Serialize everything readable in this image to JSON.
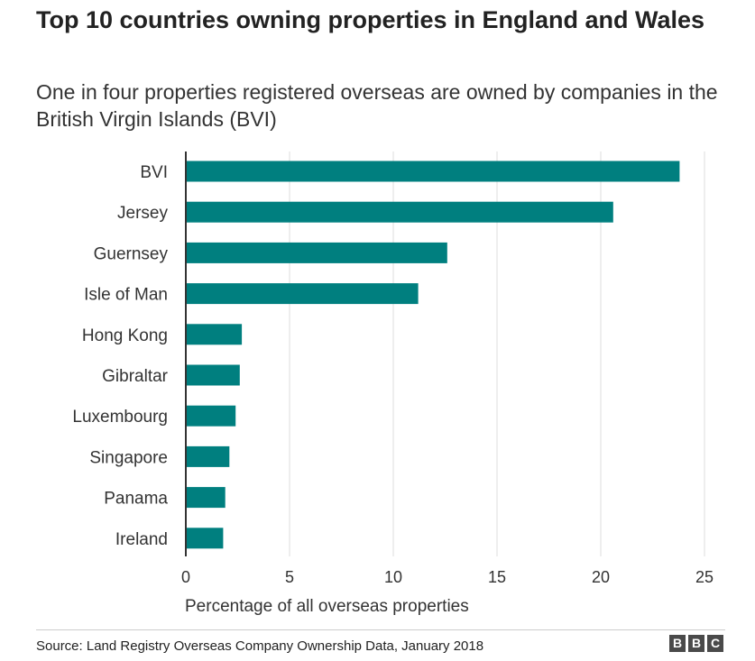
{
  "title": "Top 10 countries owning properties in England and Wales",
  "subtitle": "One in four properties registered overseas are owned by companies in the British Virgin Islands (BVI)",
  "source": "Source: Land Registry Overseas Company Ownership Data, January 2018",
  "logo": [
    "B",
    "B",
    "C"
  ],
  "colors": {
    "bar": "#007f7f",
    "grid": "#dcdcdc",
    "axis": "#333333"
  },
  "chart_data": {
    "type": "bar",
    "orientation": "horizontal",
    "title": "Top 10 countries owning properties in England and Wales",
    "subtitle": "One in four properties registered overseas are owned by companies in the British Virgin Islands (BVI)",
    "xlabel": "Percentage of all overseas properties",
    "ylabel": "",
    "categories": [
      "BVI",
      "Jersey",
      "Guernsey",
      "Isle of Man",
      "Hong Kong",
      "Gibraltar",
      "Luxembourg",
      "Singapore",
      "Panama",
      "Ireland"
    ],
    "values": [
      23.8,
      20.6,
      12.6,
      11.2,
      2.7,
      2.6,
      2.4,
      2.1,
      1.9,
      1.8
    ],
    "xlim": [
      0,
      25
    ],
    "xticks": [
      0,
      5,
      10,
      15,
      20,
      25
    ],
    "grid": true
  }
}
